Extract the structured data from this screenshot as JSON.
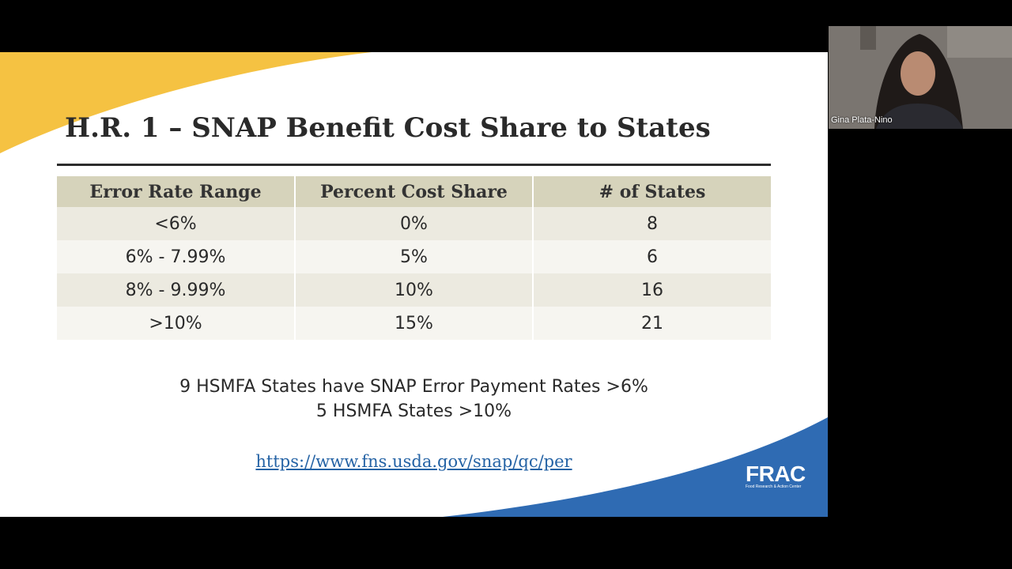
{
  "slide": {
    "title": "H.R. 1 – SNAP Benefit Cost Share to States",
    "table": {
      "headers": [
        "Error Rate Range",
        "Percent Cost Share",
        "# of States"
      ],
      "rows": [
        [
          "<6%",
          "0%",
          "8"
        ],
        [
          "6% - 7.99%",
          "5%",
          "6"
        ],
        [
          "8% - 9.99%",
          "10%",
          "16"
        ],
        [
          ">10%",
          "15%",
          "21"
        ]
      ]
    },
    "note_line1": "9 HSMFA States have SNAP Error Payment Rates >6%",
    "note_line2": "5 HSMFA States >10%",
    "link": "https://www.fns.usda.gov/snap/qc/per",
    "logo_text": "FRAC",
    "logo_tagline": "Food Research & Action Center",
    "colors": {
      "accent_yellow": "#f5c242",
      "accent_blue": "#2f6bb3",
      "header_bg": "#d6d3bb"
    }
  },
  "video": {
    "participant_name": "Gina Plata-Nino"
  }
}
